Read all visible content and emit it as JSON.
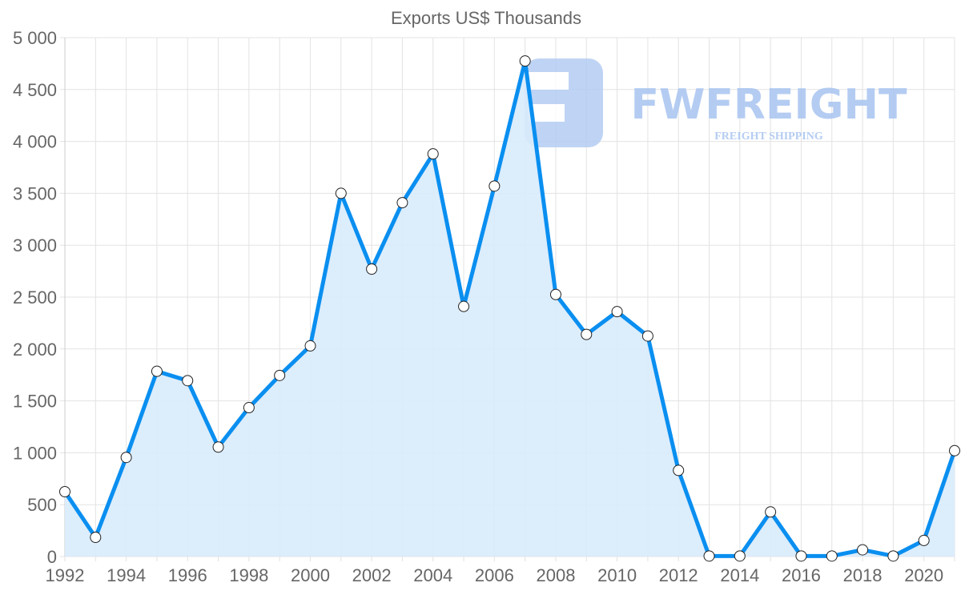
{
  "chart_data": {
    "type": "area",
    "title": "Exports US$ Thousands",
    "xlabel": "",
    "ylabel": "",
    "ylim": [
      0,
      5000
    ],
    "grid": true,
    "legend": "none",
    "x": [
      1992,
      1993,
      1994,
      1995,
      1996,
      1997,
      1998,
      1999,
      2000,
      2001,
      2002,
      2003,
      2004,
      2005,
      2006,
      2007,
      2008,
      2009,
      2010,
      2011,
      2012,
      2013,
      2014,
      2015,
      2016,
      2017,
      2018,
      2019,
      2020,
      2021
    ],
    "series": [
      {
        "name": "Exports US$ Thousands",
        "values": [
          625,
          185,
          955,
          1785,
          1695,
          1055,
          1435,
          1745,
          2030,
          3500,
          2770,
          3410,
          3880,
          2410,
          3570,
          4775,
          2525,
          2140,
          2360,
          2125,
          830,
          5,
          5,
          430,
          5,
          5,
          65,
          5,
          155,
          1020
        ]
      }
    ],
    "y_ticks": [
      "0",
      "500",
      "1 000",
      "1 500",
      "2 000",
      "2 500",
      "3 000",
      "3 500",
      "4 000",
      "4 500",
      "5 000"
    ],
    "x_tick_labels": [
      "1992",
      "1994",
      "1996",
      "1998",
      "2000",
      "2002",
      "2004",
      "2006",
      "2008",
      "2010",
      "2012",
      "2014",
      "2016",
      "2018",
      "2020"
    ],
    "colors": {
      "line": "#0a8ff0",
      "fill": "#d8ebfc",
      "grid": "#e3e3e3",
      "text": "#666666"
    }
  },
  "watermark": {
    "brand": "FWFREIGHT",
    "tagline": "FREIGHT SHIPPING",
    "color": "#a8c4f0"
  }
}
